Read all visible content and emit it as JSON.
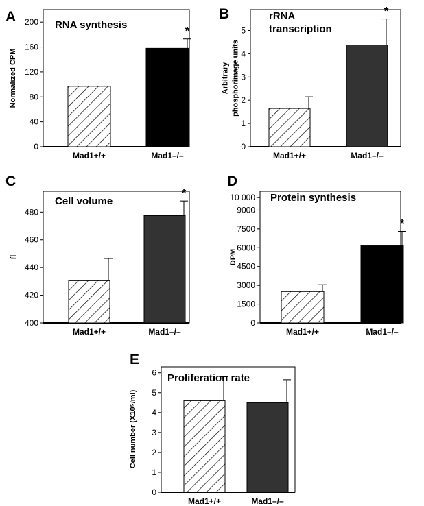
{
  "chart_data": [
    {
      "panel": "A",
      "type": "bar",
      "title": "RNA synthesis",
      "ylabel": "Normalized CPM",
      "categories": [
        "Mad1+/+",
        "Mad1–/–"
      ],
      "values": [
        97,
        158
      ],
      "errors": [
        null,
        15
      ],
      "ylim": [
        0,
        220
      ],
      "yticks": [
        "0",
        "40",
        "80",
        "120",
        "160",
        "200"
      ],
      "bar_styles": [
        "hatched",
        "solid"
      ],
      "bar_colors": [
        "#ffffff",
        "#000000"
      ],
      "annotations": [
        "",
        "*"
      ]
    },
    {
      "panel": "B",
      "type": "bar",
      "title_lines": [
        "rRNA",
        "transcription"
      ],
      "ylabel_lines": [
        "Arbitrary",
        "phosphorimage units"
      ],
      "categories": [
        "Mad1+/+",
        "Mad1–/–"
      ],
      "values": [
        1.65,
        4.38
      ],
      "errors": [
        0.5,
        1.12
      ],
      "ylim": [
        0,
        5.9
      ],
      "yticks": [
        "0",
        "1",
        "2",
        "3",
        "4",
        "5"
      ],
      "bar_styles": [
        "hatched",
        "solid"
      ],
      "bar_colors": [
        "#ffffff",
        "#333333"
      ],
      "annotations": [
        "",
        "*"
      ]
    },
    {
      "panel": "C",
      "type": "bar",
      "title": "Cell volume",
      "ylabel": "fl",
      "categories": [
        "Mad1+/+",
        "Mad1–/–"
      ],
      "values": [
        430.5,
        477.5
      ],
      "errors": [
        16,
        10.5
      ],
      "ylim": [
        400,
        495
      ],
      "yticks": [
        "400",
        "420",
        "440",
        "460",
        "480"
      ],
      "bar_styles": [
        "hatched",
        "solid"
      ],
      "bar_colors": [
        "#ffffff",
        "#333333"
      ],
      "annotations": [
        "",
        "*"
      ]
    },
    {
      "panel": "D",
      "type": "bar",
      "title": "Protein synthesis",
      "ylabel": "DPM",
      "categories": [
        "Mad1+/+",
        "Mad1–/–"
      ],
      "values": [
        2500,
        6150
      ],
      "errors": [
        550,
        1150
      ],
      "ylim": [
        0,
        10500
      ],
      "yticks": [
        "0",
        "1500",
        "3000",
        "4500",
        "6000",
        "7500",
        "9000",
        "10 000"
      ],
      "bar_styles": [
        "hatched",
        "solid"
      ],
      "bar_colors": [
        "#ffffff",
        "#000000"
      ],
      "annotations": [
        "",
        "*"
      ]
    },
    {
      "panel": "E",
      "type": "bar",
      "title": "Proliferation rate",
      "ylabel": "Cell number (X10⁵/ml)",
      "categories": [
        "Mad1+/+",
        "Mad1–/–"
      ],
      "values": [
        4.6,
        4.5
      ],
      "errors": [
        1.2,
        1.15
      ],
      "ylim": [
        0,
        6.3
      ],
      "yticks": [
        "0",
        "1",
        "2",
        "3",
        "4",
        "5",
        "6"
      ],
      "bar_styles": [
        "hatched",
        "solid"
      ],
      "bar_colors": [
        "#ffffff",
        "#333333"
      ],
      "annotations": [
        "",
        ""
      ]
    }
  ]
}
